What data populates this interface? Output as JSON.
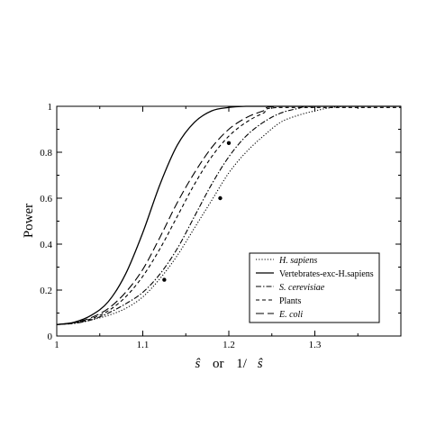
{
  "chart_data": {
    "type": "line",
    "xlabel": {
      "parts": [
        {
          "text": "ŝ",
          "italic": true
        },
        {
          "text": "or",
          "italic": false
        },
        {
          "text": "1/",
          "italic": false
        },
        {
          "text": "ŝ",
          "italic": true
        }
      ]
    },
    "ylabel": "Power",
    "xlim": [
      1.0,
      1.4
    ],
    "ylim": [
      0,
      1
    ],
    "xticks": [
      "1",
      "1.1",
      "1.2",
      "1.3"
    ],
    "yticks": [
      "0",
      "0.2",
      "0.4",
      "0.6",
      "0.8",
      "1"
    ],
    "legend_position": "bottom-right",
    "series": [
      {
        "name": "H. sapiens",
        "italic": true,
        "style": "dotted",
        "x": [
          1.0,
          1.02,
          1.04,
          1.06,
          1.08,
          1.1,
          1.12,
          1.14,
          1.16,
          1.18,
          1.2,
          1.22,
          1.24,
          1.26,
          1.28,
          1.3,
          1.32,
          1.34
        ],
        "y": [
          0.05,
          0.055,
          0.07,
          0.09,
          0.12,
          0.17,
          0.25,
          0.35,
          0.47,
          0.59,
          0.71,
          0.8,
          0.87,
          0.93,
          0.96,
          0.98,
          0.995,
          1.0
        ]
      },
      {
        "name": "Vertebrates-exc-H.sapiens",
        "italic": false,
        "style": "solid",
        "x": [
          1.0,
          1.02,
          1.04,
          1.06,
          1.08,
          1.1,
          1.12,
          1.14,
          1.16,
          1.18,
          1.2,
          1.22,
          1.24
        ],
        "y": [
          0.05,
          0.06,
          0.09,
          0.15,
          0.27,
          0.45,
          0.66,
          0.83,
          0.93,
          0.98,
          0.995,
          1.0,
          1.0
        ]
      },
      {
        "name": "S. cerevisiae",
        "italic": true,
        "style": "dashdot",
        "x": [
          1.0,
          1.02,
          1.04,
          1.06,
          1.08,
          1.1,
          1.12,
          1.14,
          1.16,
          1.18,
          1.2,
          1.22,
          1.24,
          1.26,
          1.28,
          1.3
        ],
        "y": [
          0.05,
          0.055,
          0.07,
          0.1,
          0.14,
          0.19,
          0.27,
          0.38,
          0.52,
          0.66,
          0.78,
          0.87,
          0.93,
          0.97,
          0.99,
          1.0
        ]
      },
      {
        "name": "Plants",
        "italic": false,
        "style": "dashed",
        "x": [
          1.0,
          1.02,
          1.04,
          1.06,
          1.08,
          1.1,
          1.12,
          1.14,
          1.16,
          1.18,
          1.2,
          1.22,
          1.24,
          1.26
        ],
        "y": [
          0.05,
          0.058,
          0.075,
          0.11,
          0.17,
          0.26,
          0.38,
          0.52,
          0.66,
          0.78,
          0.87,
          0.93,
          0.97,
          0.995
        ]
      },
      {
        "name": "E. coli",
        "italic": true,
        "style": "longdash",
        "x": [
          1.0,
          1.02,
          1.04,
          1.06,
          1.08,
          1.1,
          1.12,
          1.14,
          1.16,
          1.18,
          1.2,
          1.22,
          1.24,
          1.26
        ],
        "y": [
          0.05,
          0.058,
          0.08,
          0.12,
          0.19,
          0.29,
          0.43,
          0.58,
          0.71,
          0.82,
          0.9,
          0.95,
          0.98,
          1.0
        ]
      }
    ],
    "markers": [
      {
        "x": 1.2,
        "y": 0.84
      },
      {
        "x": 1.19,
        "y": 0.6
      },
      {
        "x": 1.125,
        "y": 0.245
      }
    ]
  }
}
